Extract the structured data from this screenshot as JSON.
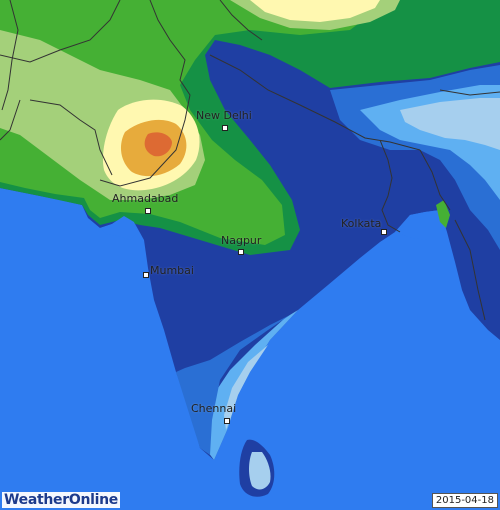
{
  "brand": {
    "logo_text": "WeatherOnline"
  },
  "map": {
    "date": "2015-04-18",
    "cities": [
      {
        "name": "New Delhi"
      },
      {
        "name": "Ahmadabad"
      },
      {
        "name": "Kolkata"
      },
      {
        "name": "Nagpur"
      },
      {
        "name": "Mumbai"
      },
      {
        "name": "Chennai"
      }
    ],
    "colors": {
      "ocean": "#2f7cf0",
      "level_1_lightblue": "#a6cfee",
      "level_2_skyblue": "#5fb0f2",
      "level_3_blue": "#2a6fd4",
      "level_4_darkblue": "#1f3fa3",
      "level_5_darkgreen": "#159145",
      "level_6_green": "#45b034",
      "level_7_lightgreen": "#a4d07a",
      "level_8_paleyellow": "#fff8b0",
      "level_9_orange": "#e7ab3c",
      "level_10_red": "#dd6a33"
    }
  }
}
